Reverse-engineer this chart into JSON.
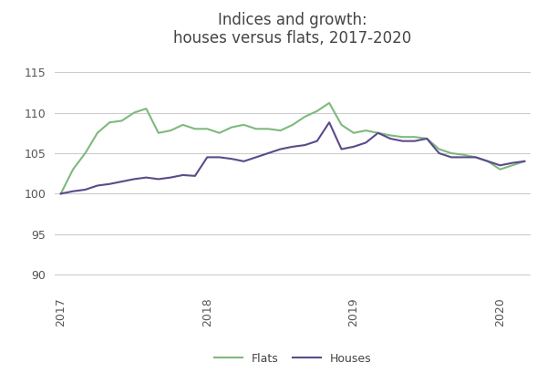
{
  "title": "Indices and growth:\nhouses versus flats, 2017-2020",
  "flats_color": "#7EB97E",
  "houses_color": "#5B4A8A",
  "background_color": "#FFFFFF",
  "grid_color": "#CCCCCC",
  "ylim": [
    88,
    117
  ],
  "yticks": [
    90,
    95,
    100,
    105,
    110,
    115
  ],
  "legend_labels": [
    "Flats",
    "Houses"
  ],
  "flats": [
    100.0,
    103.0,
    105.0,
    107.5,
    108.8,
    109.0,
    110.0,
    110.5,
    107.5,
    107.8,
    108.5,
    108.0,
    108.0,
    107.5,
    108.2,
    108.5,
    108.0,
    108.0,
    107.8,
    108.5,
    109.5,
    110.2,
    111.2,
    108.5,
    107.5,
    107.8,
    107.5,
    107.2,
    107.0,
    107.0,
    106.8,
    105.5,
    105.0,
    104.8,
    104.5,
    104.0,
    103.0,
    103.5,
    104.0
  ],
  "houses": [
    100.0,
    100.3,
    100.5,
    101.0,
    101.2,
    101.5,
    101.8,
    102.0,
    101.8,
    102.0,
    102.3,
    102.2,
    104.5,
    104.5,
    104.3,
    104.0,
    104.5,
    105.0,
    105.5,
    105.8,
    106.0,
    106.5,
    108.8,
    105.5,
    105.8,
    106.3,
    107.5,
    106.8,
    106.5,
    106.5,
    106.8,
    105.0,
    104.5,
    104.5,
    104.5,
    104.0,
    103.5,
    103.8,
    104.0
  ],
  "n_points": 39,
  "year_tick_indices": [
    0,
    12,
    24,
    36
  ],
  "x_year_labels": [
    "2017",
    "2018",
    "2019",
    "2020"
  ]
}
